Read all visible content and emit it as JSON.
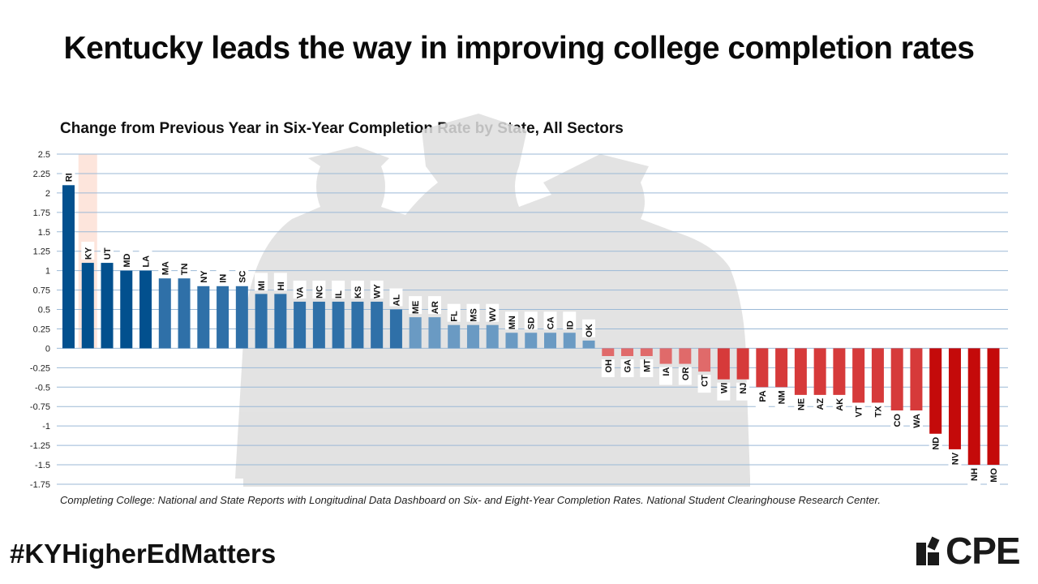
{
  "headline": "Kentucky leads the way in improving college completion rates",
  "footer": {
    "source": "Completing College: National and State Reports with Longitudinal Data Dashboard on Six- and Eight-Year Completion Rates. National Student Clearinghouse Research Center.",
    "hashtag": "#KYHigherEdMatters",
    "logo_text": "CPE"
  },
  "chart_data": {
    "type": "bar",
    "title": "Change from Previous Year in Six-Year Completion Rate by State, All Sectors",
    "xlabel": "",
    "ylabel": "",
    "ylim": [
      -1.75,
      2.5
    ],
    "yticks": [
      "2.5",
      "2.25",
      "2",
      "1.75",
      "1.5",
      "1.25",
      "1",
      "0.75",
      "0.5",
      "0.25",
      "0",
      "-0.25",
      "-0.5",
      "-0.75",
      "-1",
      "-1.25",
      "-1.5",
      "-1.75"
    ],
    "grid": true,
    "highlight": "KY",
    "categories": [
      "RI",
      "KY",
      "UT",
      "MD",
      "LA",
      "MA",
      "TN",
      "NY",
      "IN",
      "SC",
      "MI",
      "HI",
      "VA",
      "NC",
      "IL",
      "KS",
      "WY",
      "AL",
      "ME",
      "AR",
      "FL",
      "MS",
      "WV",
      "MN",
      "SD",
      "CA",
      "ID",
      "OK",
      "OH",
      "GA",
      "MT",
      "IA",
      "OR",
      "CT",
      "WI",
      "NJ",
      "PA",
      "NM",
      "NE",
      "AZ",
      "AK",
      "VT",
      "TX",
      "CO",
      "WA",
      "ND",
      "NV",
      "NH",
      "MO"
    ],
    "values": [
      2.1,
      1.1,
      1.1,
      1.0,
      1.0,
      0.9,
      0.9,
      0.8,
      0.8,
      0.8,
      0.7,
      0.7,
      0.6,
      0.6,
      0.6,
      0.6,
      0.6,
      0.5,
      0.4,
      0.4,
      0.3,
      0.3,
      0.3,
      0.2,
      0.2,
      0.2,
      0.2,
      0.1,
      -0.1,
      -0.1,
      -0.1,
      -0.2,
      -0.2,
      -0.3,
      -0.4,
      -0.4,
      -0.5,
      -0.5,
      -0.6,
      -0.6,
      -0.6,
      -0.7,
      -0.7,
      -0.8,
      -0.8,
      -1.1,
      -1.3,
      -1.5,
      -1.5
    ],
    "colors": {
      "pos_dark": "#02508e",
      "pos_mid": "#2f70a8",
      "pos_light": "#6a9ac3",
      "neg_light": "#e06a6a",
      "neg_mid": "#d63a3a",
      "neg_dark": "#c40a0a",
      "grid": "#9bb9d6",
      "highlight_band": "#fde5dc"
    }
  }
}
